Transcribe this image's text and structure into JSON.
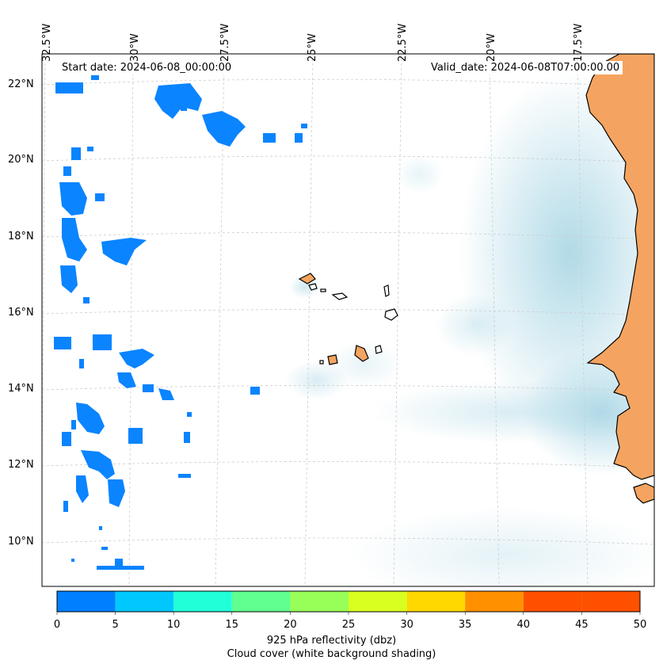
{
  "header": {
    "start_date": "Start date: 2024-06-08_00:00:00",
    "valid_date": "Valid_date: 2024-06-08T07:00:00.00"
  },
  "axes": {
    "longitude_labels": [
      "32.5°W",
      "30°W",
      "27.5°W",
      "25°W",
      "22.5°W",
      "20°W",
      "17.5°W"
    ],
    "latitude_labels": [
      "22°N",
      "20°N",
      "18°N",
      "16°N",
      "14°N",
      "12°N",
      "10°N"
    ]
  },
  "colorbar": {
    "ticks": [
      "0",
      "5",
      "10",
      "15",
      "20",
      "25",
      "30",
      "35",
      "40",
      "45",
      "50"
    ],
    "colors": [
      "#0080ff",
      "#00c8ff",
      "#20ffd8",
      "#60ff90",
      "#98ff58",
      "#d8ff20",
      "#ffd800",
      "#ff9000",
      "#ff5000",
      "#ff5000"
    ],
    "label_line1": "925 hPa reflectivity (dbz)",
    "label_line2": "Cloud cover (white background shading)"
  },
  "colors": {
    "land": "#f4a460",
    "cloud": "#add8e6",
    "echo": "#0a84ff"
  }
}
